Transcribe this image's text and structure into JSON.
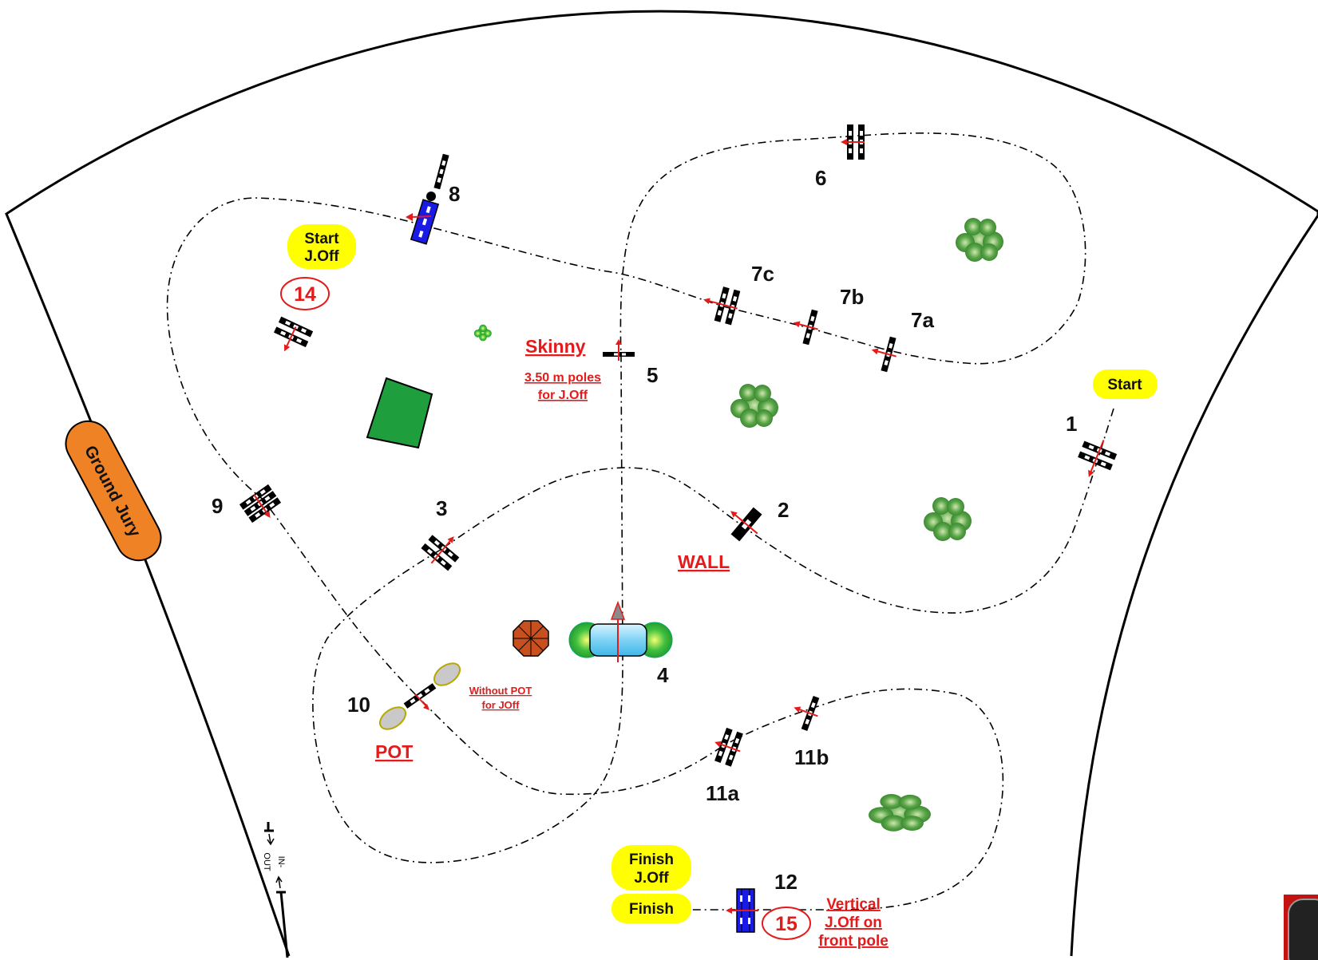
{
  "fences": {
    "f1": "1",
    "f2": "2",
    "f3": "3",
    "f4": "4",
    "f5": "5",
    "f6": "6",
    "f7a": "7a",
    "f7b": "7b",
    "f7c": "7c",
    "f8": "8",
    "f9": "9",
    "f10": "10",
    "f11a": "11a",
    "f11b": "11b",
    "f12": "12",
    "f14": "14",
    "f15": "15"
  },
  "labels": {
    "start": "Start",
    "start_joff_1": "Start",
    "start_joff_2": "J.Off",
    "finish": "Finish",
    "finish_joff_1": "Finish",
    "finish_joff_2": "J.Off",
    "ground_jury": "Ground Jury",
    "skinny": "Skinny",
    "poles_1": "3.50 m poles",
    "poles_2": "for J.Off",
    "wall": "WALL",
    "pot": "POT",
    "without_pot_1": "Without POT",
    "without_pot_2": "for JOff",
    "vertical_1": "Vertical",
    "vertical_2": "J.Off on",
    "vertical_3": "front pole",
    "in": "IN-",
    "out": "OUT"
  },
  "colors": {
    "yellow": "#ffff00",
    "orange": "#f08226",
    "red": "#e31b1b",
    "blue": "#1a1ae6",
    "green": "#1e9e3c",
    "water": "#7fd3f5"
  },
  "icons": {
    "tree": "tree-icon",
    "umbrella": "umbrella-icon",
    "water": "water-jump-icon"
  }
}
